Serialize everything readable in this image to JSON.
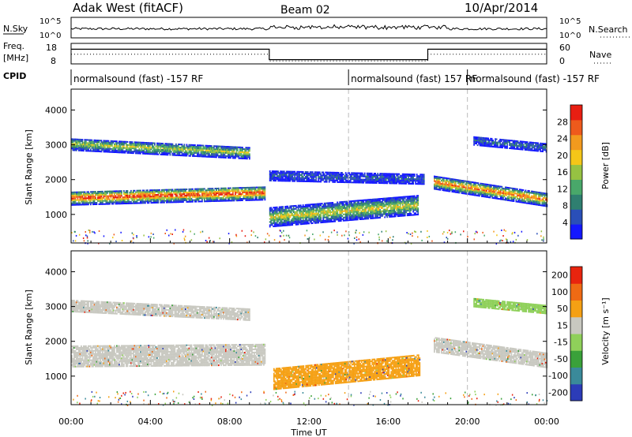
{
  "header": {
    "title": "Adak West (fitACF)",
    "beam": "Beam 02",
    "date": "10/Apr/2014"
  },
  "top_panels": {
    "nsky_label": "N.Sky",
    "nsearch_label": "N.Search",
    "freq_label_1": "Freq.",
    "freq_label_2": "[MHz]",
    "nave_label": "Nave",
    "cpid_label": "CPID",
    "nsky_ticks": [
      "10^5",
      "10^0"
    ],
    "nsearch_ticks": [
      "10^5",
      "10^0"
    ],
    "freq_ticks": [
      "18",
      "8"
    ],
    "nave_ticks": [
      "60",
      "0"
    ],
    "cpid_segments": [
      {
        "start_hr": 0,
        "label": "normalsound (fast) -157 RF"
      },
      {
        "start_hr": 14,
        "label": "normalsound (fast) 157 RF"
      },
      {
        "start_hr": 20,
        "label": "normalsound (fast) -157 RF"
      }
    ],
    "freq_steps": [
      {
        "from_hr": 0,
        "to_hr": 10,
        "level": 0.8
      },
      {
        "from_hr": 10,
        "to_hr": 18,
        "level": 0.2
      },
      {
        "from_hr": 18,
        "to_hr": 24,
        "level": 0.8
      }
    ]
  },
  "chart_data": [
    {
      "type": "heatmap",
      "name": "power",
      "ylabel": "Slant Range [km]",
      "ylim": [
        180,
        4600
      ],
      "xlim": [
        0,
        24
      ],
      "yticks": [
        "1000",
        "2000",
        "3000",
        "4000"
      ],
      "colorbar_label": "Power [dB]",
      "colorbar_ticks": [
        "4",
        "8",
        "12",
        "16",
        "20",
        "24",
        "28"
      ],
      "colorbar_colors": [
        "#1418ff",
        "#2a4fb8",
        "#2f7f70",
        "#49a86a",
        "#96c242",
        "#f4c618",
        "#f29a1e",
        "#ee5a1c",
        "#e81e12"
      ],
      "bands": [
        {
          "from_hr": 0,
          "to_hr": 9.8,
          "center_km": [
            1450,
            1600
          ],
          "width_km": 400,
          "intensity": 0.95
        },
        {
          "from_hr": 0,
          "to_hr": 9.0,
          "center_km": [
            3000,
            2750
          ],
          "width_km": 350,
          "intensity": 0.55
        },
        {
          "from_hr": 10.0,
          "to_hr": 17.5,
          "center_km": [
            900,
            1250
          ],
          "width_km": 550,
          "intensity": 0.6
        },
        {
          "from_hr": 10.0,
          "to_hr": 17.8,
          "center_km": [
            2100,
            2000
          ],
          "width_km": 300,
          "intensity": 0.2
        },
        {
          "from_hr": 18.3,
          "to_hr": 24,
          "center_km": [
            1900,
            1400
          ],
          "width_km": 380,
          "intensity": 0.85
        },
        {
          "from_hr": 20.3,
          "to_hr": 24,
          "center_km": [
            3100,
            2900
          ],
          "width_km": 250,
          "intensity": 0.25
        }
      ]
    },
    {
      "type": "heatmap",
      "name": "velocity",
      "xlabel": "Time UT",
      "ylabel": "Slant Range [km]",
      "ylim": [
        180,
        4600
      ],
      "xlim": [
        0,
        24
      ],
      "yticks": [
        "1000",
        "2000",
        "3000",
        "4000"
      ],
      "xticks": [
        "00:00",
        "04:00",
        "08:00",
        "12:00",
        "16:00",
        "20:00",
        "00:00"
      ],
      "colorbar_label": "Velocity [m s⁻¹]",
      "colorbar_ticks": [
        "200",
        "100",
        "50",
        "15",
        "-15",
        "-50",
        "-100",
        "-200"
      ],
      "colorbar_colors": [
        "#2c3cb8",
        "#3a8a9a",
        "#3aa13a",
        "#8fd05a",
        "#c8c8c0",
        "#f5a014",
        "#ef6a14",
        "#e8240e"
      ],
      "bands": [
        {
          "from_hr": 0,
          "to_hr": 9.8,
          "center_km": [
            1550,
            1600
          ],
          "width_km": 600,
          "color": "#c8c8c0"
        },
        {
          "from_hr": 0,
          "to_hr": 9.0,
          "center_km": [
            3000,
            2750
          ],
          "width_km": 330,
          "color": "#c8c8c0"
        },
        {
          "from_hr": 10.2,
          "to_hr": 17.6,
          "center_km": [
            900,
            1300
          ],
          "width_km": 600,
          "color": "#f5a014"
        },
        {
          "from_hr": 18.3,
          "to_hr": 24,
          "center_km": [
            1900,
            1450
          ],
          "width_km": 450,
          "color": "#c8c8c0"
        },
        {
          "from_hr": 20.3,
          "to_hr": 24,
          "center_km": [
            3100,
            2900
          ],
          "width_km": 250,
          "color": "#8fd05a"
        }
      ]
    }
  ]
}
